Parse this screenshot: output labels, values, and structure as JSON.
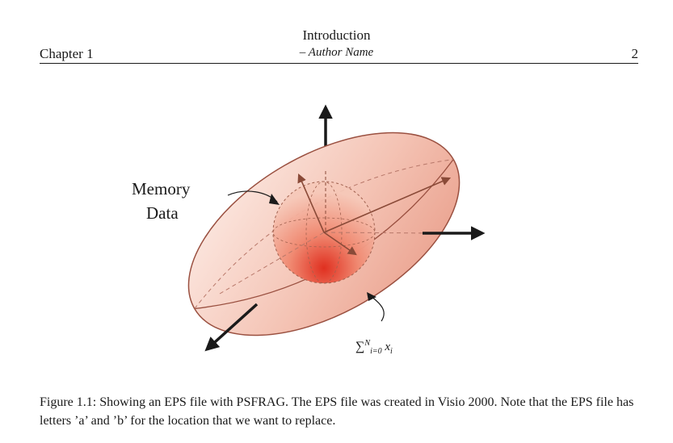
{
  "header": {
    "title": "Introduction",
    "author": "– Author Name",
    "chapter": "Chapter 1",
    "page_number": "2"
  },
  "figure": {
    "labels": {
      "memory": "Memory",
      "data": "Data",
      "sum_symbol": "∑",
      "sum_upper": "N",
      "sum_lower": "i=0",
      "sum_term": "x",
      "sum_term_sub": "i"
    },
    "colors": {
      "ellipsoid_fill_light": "#fbe3dc",
      "ellipsoid_fill_mid": "#efae9c",
      "ellipsoid_outline": "#9a5040",
      "sphere_core": "#e03020",
      "arrow": "#1a1a1a",
      "inner_vector": "#8a4a38"
    }
  },
  "caption": {
    "text": "Figure 1.1: Showing an EPS file with PSFRAG. The EPS file was created in Visio 2000. Note that the EPS file has letters ’a’ and ’b’ for the location that we want to replace."
  }
}
